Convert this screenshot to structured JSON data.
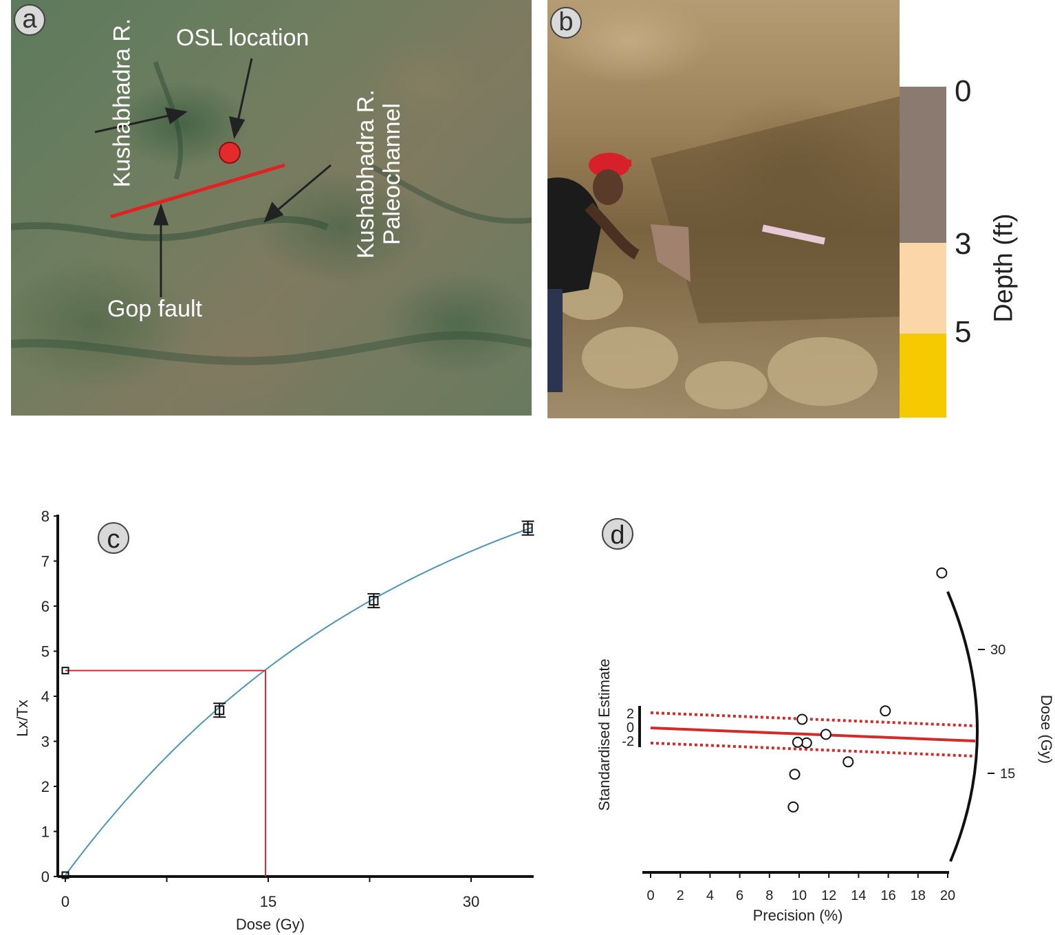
{
  "panel_a": {
    "letter": "a",
    "labels": {
      "kushabhadra": "Kushabhadra R.",
      "osl": "OSL location",
      "paleochannel_line1": "Kushabhadra R.",
      "paleochannel_line2": "Paleochannel",
      "gop_fault": "Gop fault"
    },
    "colors": {
      "marker": "#e32b2b",
      "fault_line": "#e02222"
    }
  },
  "panel_b": {
    "letter": "b",
    "depth_axis_label": "Depth (ft)",
    "depth_ticks": [
      "0",
      "3",
      "5"
    ],
    "layer_colors": [
      "#8a7a70",
      "#fad6a8",
      "#f6ca00"
    ]
  },
  "panel_c": {
    "letter": "c",
    "chart_data": {
      "type": "line",
      "xlabel": "Dose (Gy)",
      "ylabel": "Lx/Tx",
      "xlim": [
        -0.5,
        35
      ],
      "ylim": [
        0,
        8
      ],
      "x_ticks": [
        "0",
        "15",
        "30"
      ],
      "y_ticks": [
        "0",
        "1",
        "2",
        "3",
        "4",
        "5",
        "6",
        "7",
        "8"
      ],
      "points": [
        {
          "x": 0,
          "y": 0.03
        },
        {
          "x": 0,
          "y": 4.57
        },
        {
          "x": 11.4,
          "y": 3.69
        },
        {
          "x": 22.8,
          "y": 6.12
        },
        {
          "x": 34.2,
          "y": 7.73
        }
      ],
      "fit_curve": {
        "a": 10.5,
        "d0": 26,
        "color": "#4a95b8"
      },
      "de_estimate": {
        "lx_tx": 4.57,
        "dose": 14.8,
        "color": "#d42a2a"
      }
    }
  },
  "panel_d": {
    "letter": "d",
    "chart_data": {
      "type": "scatter",
      "xlabel": "Precision (%)",
      "ylabel": "Standardised Estimate",
      "zlabel": "Dose (Gy)",
      "xlim": [
        0,
        20
      ],
      "x_ticks": [
        "0",
        "2",
        "4",
        "6",
        "8",
        "10",
        "12",
        "14",
        "16",
        "18",
        "20"
      ],
      "y_ticks": [
        "2",
        "0",
        "-2"
      ],
      "z_ticks": [
        "30",
        "15"
      ],
      "points": [
        {
          "x": 10.2,
          "y": 1.1
        },
        {
          "x": 15.8,
          "y": 2.4
        },
        {
          "x": 11.8,
          "y": -1.2
        },
        {
          "x": 10.5,
          "y": -2.5
        },
        {
          "x": 9.9,
          "y": -2.4
        },
        {
          "x": 13.3,
          "y": -5.4
        },
        {
          "x": 9.7,
          "y": -7.3
        },
        {
          "x": 9.6,
          "y": -12.3
        },
        {
          "x": 19.6,
          "y": 23.5
        }
      ],
      "central_line_color": "#d42a2a",
      "band_color": "#d42a2a"
    }
  }
}
